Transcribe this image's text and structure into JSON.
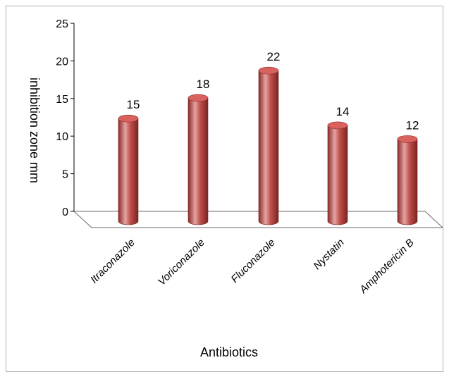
{
  "chart_data": {
    "type": "bar",
    "categories": [
      "Itraconazole",
      "Voriconazole",
      "Fluconazole",
      "Nystatin",
      "Amphotericin B"
    ],
    "values": [
      15,
      18,
      22,
      14,
      12
    ],
    "data_labels": [
      "15",
      "18",
      "22",
      "14",
      "12"
    ],
    "title": "",
    "xlabel": "Antibiotics",
    "ylabel": "inhibition  zone  mm",
    "ylim": [
      0,
      25
    ],
    "yticks": [
      0,
      5,
      10,
      15,
      20,
      25
    ],
    "grid": false,
    "legend": "none",
    "bar_style": "3d-cylinder",
    "colors": {
      "bar": "#c0504d",
      "bar_dark": "#8b2a28",
      "bar_light": "#e4a4a2",
      "bar_top": "#d9625e"
    }
  }
}
